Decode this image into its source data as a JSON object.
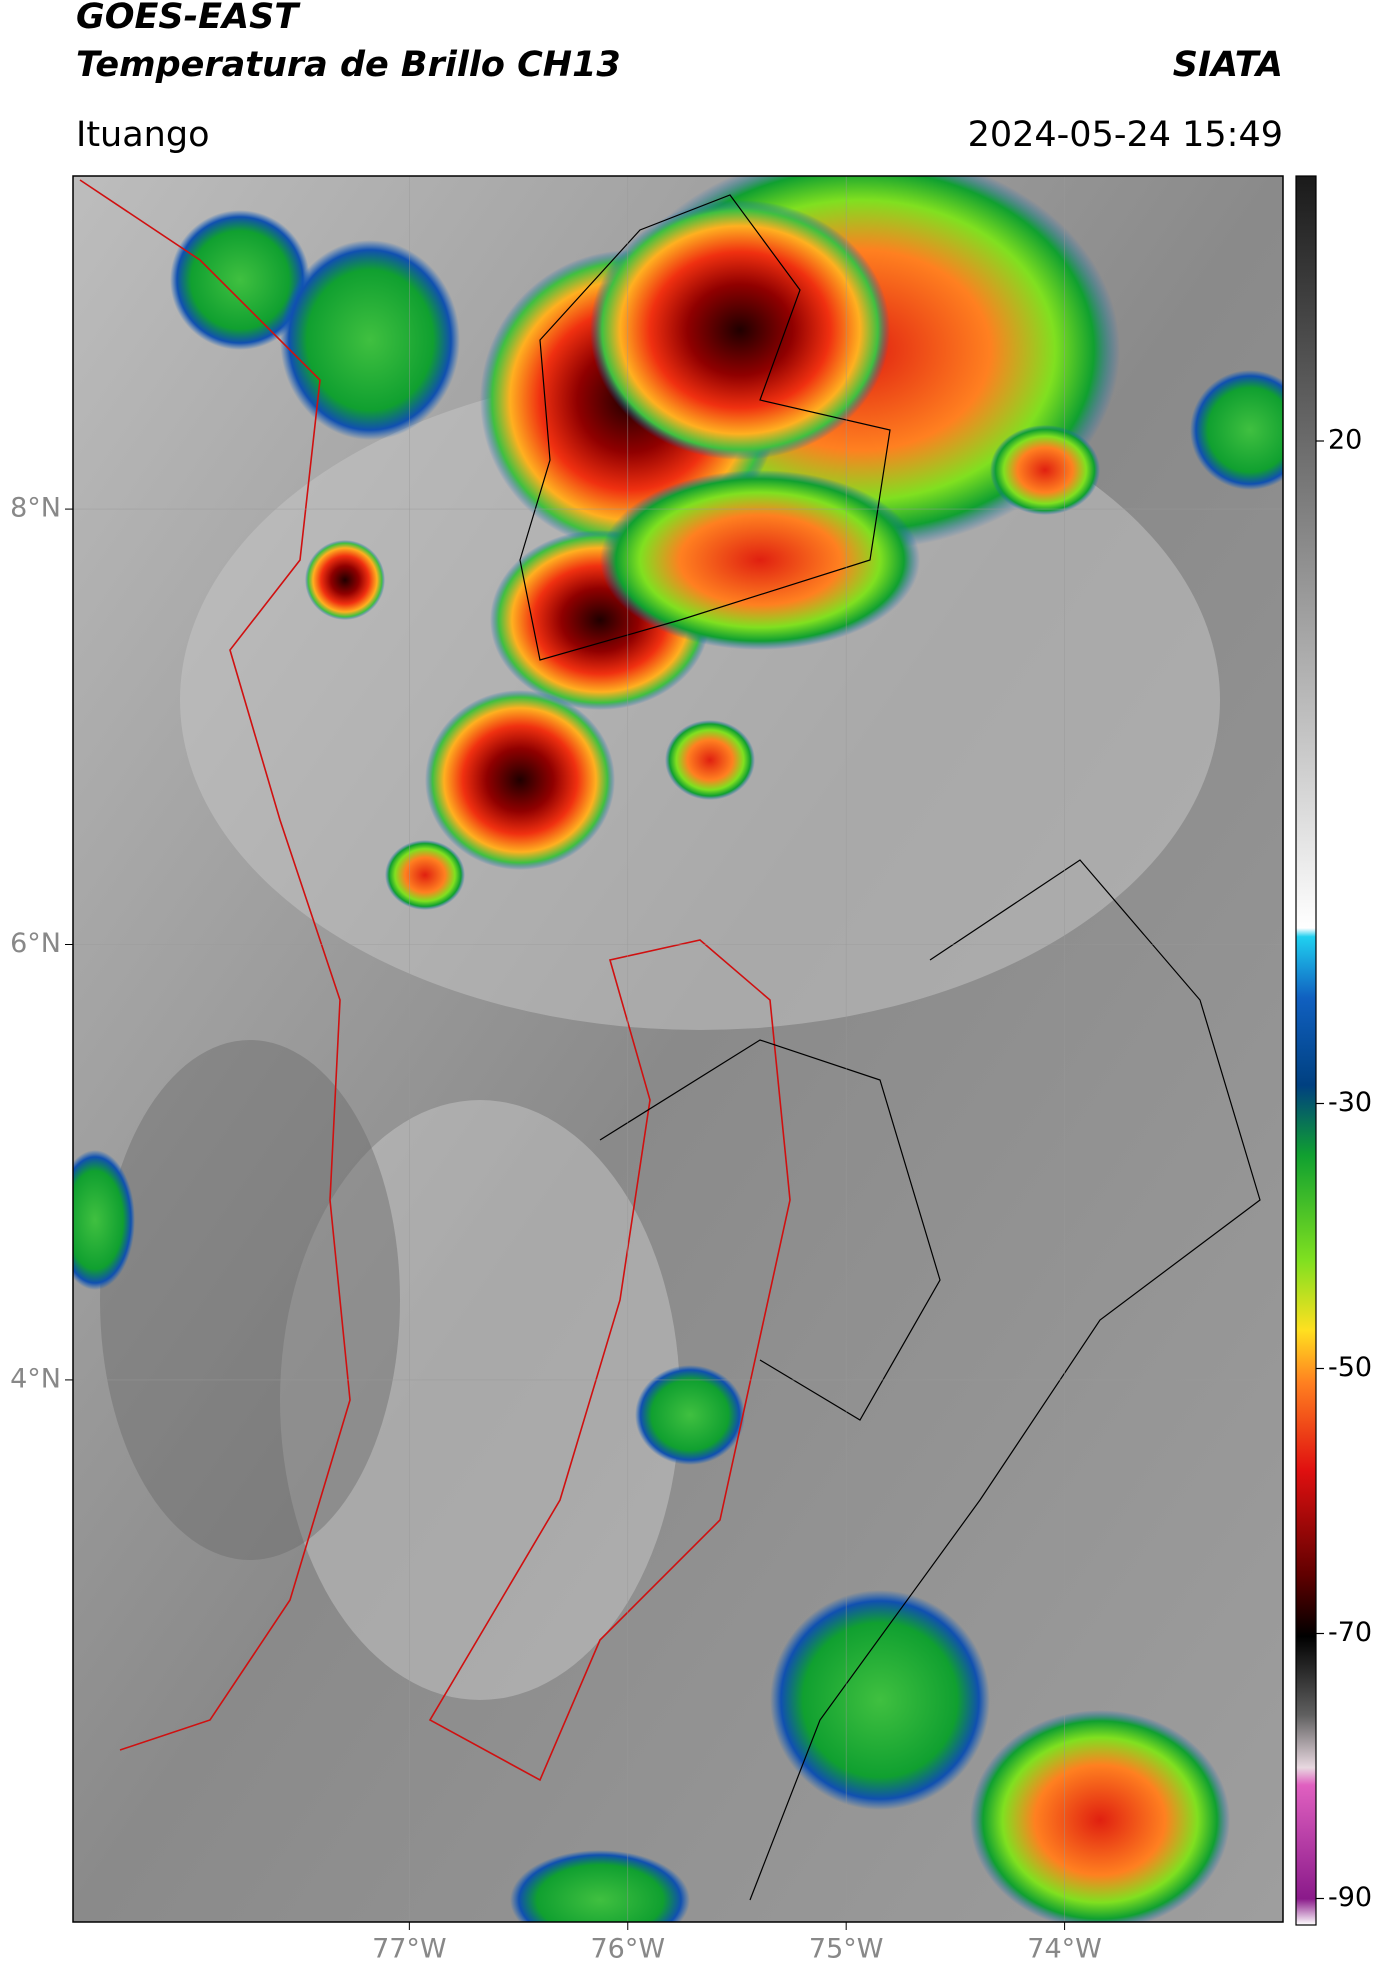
{
  "header": {
    "title": "GOES-EAST",
    "subtitle": "Temperatura de Brillo CH13",
    "source": "SIATA",
    "location": "Ituango",
    "datetime": "2024-05-24 15:49"
  },
  "map": {
    "xlim": [
      -78.54,
      -73
    ],
    "ylim": [
      1.51,
      9.53
    ],
    "xticks": [
      {
        "value": -77,
        "label": "77°W"
      },
      {
        "value": -76,
        "label": "76°W"
      },
      {
        "value": -75,
        "label": "75°W"
      },
      {
        "value": -74,
        "label": "74°W"
      }
    ],
    "yticks": [
      {
        "value": 8,
        "label": "8°N"
      },
      {
        "value": 6,
        "label": "6°N"
      },
      {
        "value": 4,
        "label": "4°N"
      }
    ]
  },
  "colorbar": {
    "ylim": [
      -92,
      40
    ],
    "yticks": [
      20,
      -30,
      -50,
      -70,
      -90
    ]
  }
}
